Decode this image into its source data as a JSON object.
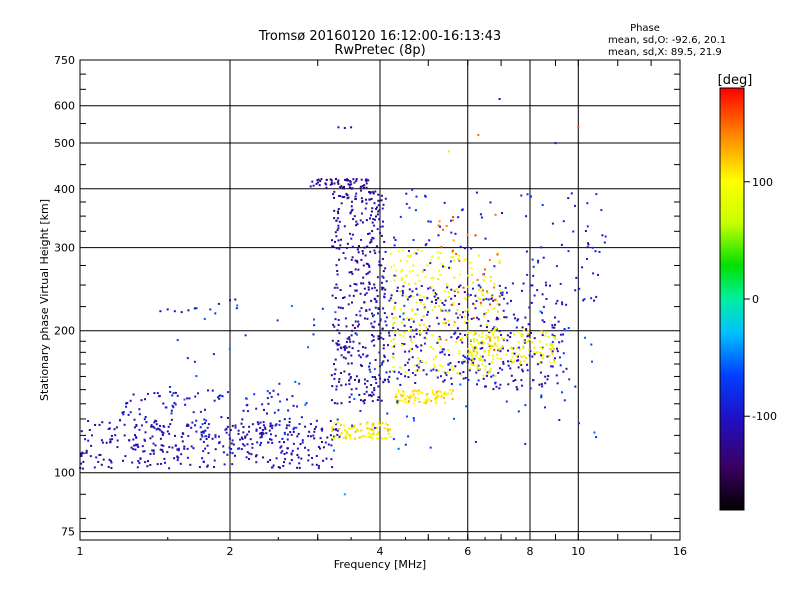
{
  "chart_data": {
    "type": "scatter",
    "title": "Tromsø 20160120 16:12:00-16:13:43",
    "subtitle": "RwPretec (8p)",
    "xlabel": "Frequency [MHz]",
    "ylabel": "Stationary phase Virtual Height [km]",
    "x_scale": "log",
    "y_scale": "log",
    "xlim": [
      1,
      16
    ],
    "ylim": [
      72,
      750
    ],
    "x_ticks": [
      1,
      2,
      4,
      6,
      8,
      10,
      16
    ],
    "x_tick_labels": [
      "1",
      "2",
      "4",
      "6",
      "8",
      "10",
      "16"
    ],
    "y_ticks": [
      75,
      100,
      200,
      300,
      400,
      500,
      600,
      750
    ],
    "y_tick_labels": [
      "75",
      "100",
      "200",
      "300",
      "400",
      "500",
      "600",
      "750"
    ],
    "grid": true,
    "phase_box": {
      "title": "Phase",
      "line1": "mean, sd,O: -92.6, 20.1",
      "line2": "mean, sd,X:  89.5, 21.9"
    },
    "colorbar": {
      "label": "[deg]",
      "range": [
        -180,
        180
      ],
      "ticks": [
        100,
        0,
        -100
      ],
      "tick_labels": [
        "100",
        "0",
        "-100"
      ]
    },
    "clusters": [
      {
        "name": "low-blue",
        "x_range": [
          1.0,
          3.3
        ],
        "y_range": [
          102,
          130
        ],
        "phase": -110,
        "count": 320
      },
      {
        "name": "low-ridge",
        "x_range": [
          1.2,
          2.8
        ],
        "y_range": [
          110,
          150
        ],
        "phase": -100,
        "count": 160
      },
      {
        "name": "rise-blue",
        "x_range": [
          3.2,
          4.1
        ],
        "y_range": [
          140,
          400
        ],
        "phase": -115,
        "count": 380
      },
      {
        "name": "top-blue",
        "x_range": [
          2.9,
          3.8
        ],
        "y_range": [
          400,
          420
        ],
        "phase": -120,
        "count": 60
      },
      {
        "name": "mid-blue",
        "x_range": [
          4.0,
          9.5
        ],
        "y_range": [
          150,
          250
        ],
        "phase": -105,
        "count": 360
      },
      {
        "name": "yellow-low",
        "x_range": [
          3.2,
          4.2
        ],
        "y_range": [
          118,
          128
        ],
        "phase": 105,
        "count": 90
      },
      {
        "name": "yellow-mid",
        "x_range": [
          4.3,
          5.6
        ],
        "y_range": [
          140,
          150
        ],
        "phase": 110,
        "count": 80
      },
      {
        "name": "yellow-high",
        "x_range": [
          4.2,
          7.0
        ],
        "y_range": [
          160,
          300
        ],
        "phase": 95,
        "count": 260
      },
      {
        "name": "yellow-f",
        "x_range": [
          6.0,
          9.0
        ],
        "y_range": [
          170,
          200
        ],
        "phase": 100,
        "count": 140
      },
      {
        "name": "cyan-scatter",
        "x_range": [
          1.5,
          11.0
        ],
        "y_range": [
          110,
          230
        ],
        "phase": -70,
        "count": 120
      },
      {
        "name": "upper-scatter",
        "x_range": [
          4.0,
          11.5
        ],
        "y_range": [
          230,
          400
        ],
        "phase": -90,
        "count": 120
      },
      {
        "name": "red-orange",
        "x_range": [
          5.2,
          7.0
        ],
        "y_range": [
          180,
          360
        ],
        "phase": 150,
        "count": 40
      }
    ],
    "points": [
      {
        "x": 1.45,
        "y": 220,
        "phase": -110
      },
      {
        "x": 1.5,
        "y": 222,
        "phase": -110
      },
      {
        "x": 1.55,
        "y": 220,
        "phase": -110
      },
      {
        "x": 1.6,
        "y": 219,
        "phase": -110
      },
      {
        "x": 1.65,
        "y": 221,
        "phase": -110
      },
      {
        "x": 1.7,
        "y": 223,
        "phase": -110
      },
      {
        "x": 1.9,
        "y": 228,
        "phase": -110
      },
      {
        "x": 2.0,
        "y": 232,
        "phase": -110
      },
      {
        "x": 2.05,
        "y": 233,
        "phase": -110
      },
      {
        "x": 3.3,
        "y": 540,
        "phase": -110
      },
      {
        "x": 3.4,
        "y": 538,
        "phase": -110
      },
      {
        "x": 3.5,
        "y": 540,
        "phase": -110
      },
      {
        "x": 6.95,
        "y": 620,
        "phase": -110
      },
      {
        "x": 9.0,
        "y": 500,
        "phase": -110
      },
      {
        "x": 10.0,
        "y": 540,
        "phase": 160
      },
      {
        "x": 6.3,
        "y": 520,
        "phase": 150
      },
      {
        "x": 3.4,
        "y": 90,
        "phase": -40
      },
      {
        "x": 5.5,
        "y": 480,
        "phase": 110
      }
    ]
  }
}
